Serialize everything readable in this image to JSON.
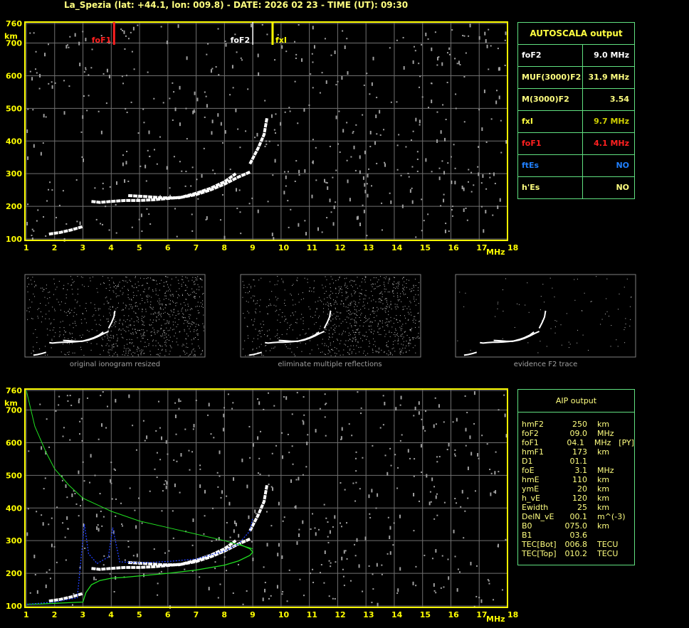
{
  "title": "La_Spezia (lat: +44.1, lon: 009.8) - DATE: 2026 02 23 - TIME (UT): 09:30",
  "colors": {
    "axis": "#ffff00",
    "grid": "#707070",
    "trace": "#ffffff",
    "noise": "#a0a0a0",
    "foF1": "#ff2020",
    "fxI": "#ffff00",
    "foF2": "#ffffff",
    "profile": "#20e020",
    "fit": "#2040ff",
    "table_border": "#60e080"
  },
  "chart_data": [
    {
      "type": "scatter",
      "name_note": "",
      "xlabel": "MHz",
      "ylabel": "km",
      "xlim": [
        1,
        18
      ],
      "ylim": [
        100,
        760
      ],
      "xticks": [
        "1",
        "2",
        "3",
        "4",
        "5",
        "6",
        "7",
        "8",
        "9",
        "10",
        "11",
        "12",
        "13",
        "14",
        "15",
        "16",
        "17",
        "18"
      ],
      "yticks": [
        "100",
        "200",
        "300",
        "400",
        "500",
        "600",
        "700",
        "760"
      ],
      "grid": true,
      "markers": [
        {
          "label": "foF1",
          "freq": 4.1
        },
        {
          "label": "foF2",
          "freq": 9.0
        },
        {
          "label": "fxI",
          "freq": 9.7
        }
      ],
      "traces": {
        "E": [
          [
            1.8,
            115
          ],
          [
            2.2,
            120
          ],
          [
            2.6,
            128
          ],
          [
            3.0,
            138
          ]
        ],
        "F1": [
          [
            3.3,
            215
          ],
          [
            3.6,
            212
          ],
          [
            4.0,
            215
          ],
          [
            4.5,
            218
          ],
          [
            5.0,
            218
          ],
          [
            5.5,
            220
          ],
          [
            6.0,
            224
          ],
          [
            6.5,
            228
          ],
          [
            7.0,
            236
          ],
          [
            7.5,
            250
          ],
          [
            8.0,
            268
          ],
          [
            8.5,
            290
          ],
          [
            8.9,
            305
          ]
        ],
        "F1b": [
          [
            4.6,
            233
          ],
          [
            5.2,
            230
          ],
          [
            5.8,
            226
          ],
          [
            6.4,
            226
          ],
          [
            7.0,
            240
          ],
          [
            7.5,
            255
          ],
          [
            8.0,
            275
          ],
          [
            8.4,
            300
          ]
        ],
        "F2": [
          [
            8.9,
            330
          ],
          [
            9.2,
            380
          ],
          [
            9.4,
            420
          ],
          [
            9.5,
            470
          ]
        ]
      }
    },
    {
      "type": "line",
      "xlabel": "MHz",
      "ylabel": "km",
      "xlim": [
        1,
        18
      ],
      "ylim": [
        100,
        760
      ],
      "xticks": [
        "1",
        "2",
        "3",
        "4",
        "5",
        "6",
        "7",
        "8",
        "9",
        "10",
        "11",
        "12",
        "13",
        "14",
        "15",
        "16",
        "17",
        "18"
      ],
      "yticks": [
        "100",
        "200",
        "300",
        "400",
        "500",
        "600",
        "700",
        "760"
      ],
      "grid": true,
      "series": [
        {
          "color": "#20e020",
          "x": [
            1.0,
            1.5,
            2.0,
            2.5,
            3.0,
            3.1,
            3.3,
            3.6,
            4.0,
            4.5,
            5.0,
            6.0,
            7.0,
            8.0,
            8.5,
            8.9,
            9.0,
            8.9,
            8.5
          ],
          "y": [
            105,
            106,
            108,
            110,
            112,
            140,
            165,
            178,
            185,
            188,
            192,
            200,
            210,
            225,
            238,
            255,
            265,
            275,
            290
          ]
        },
        {
          "color": "#20e020",
          "x": [
            1.0,
            1.3,
            1.7,
            2.0,
            2.5,
            3.0,
            3.5,
            4.0,
            5.0,
            6.0,
            7.0,
            8.0,
            9.0
          ],
          "y": [
            760,
            650,
            570,
            520,
            470,
            430,
            410,
            390,
            360,
            340,
            320,
            300,
            275
          ]
        },
        {
          "color": "#2040ff",
          "x": [
            1.0,
            2.0,
            2.8,
            3.05,
            3.2,
            3.5,
            3.9,
            4.05,
            4.3,
            5.0,
            6.0,
            7.0,
            8.0,
            8.5,
            8.9,
            9.0
          ],
          "y": [
            105,
            112,
            125,
            350,
            260,
            230,
            250,
            340,
            235,
            232,
            236,
            244,
            268,
            290,
            330,
            370
          ]
        }
      ]
    }
  ],
  "autoscala": {
    "title": "AUTOSCALA output",
    "rows": [
      {
        "k": "foF2",
        "v": "9.0 MHz",
        "kc": "#ffffff",
        "vc": "#ffffff"
      },
      {
        "k": "MUF(3000)F2",
        "v": "31.9 MHz",
        "kc": "#ffff80",
        "vc": "#ffff80"
      },
      {
        "k": "M(3000)F2",
        "v": "3.54",
        "kc": "#ffff80",
        "vc": "#ffff80"
      },
      {
        "k": "fxI",
        "v": "9.7 MHz",
        "kc": "#ffff40",
        "vc": "#d0d000"
      },
      {
        "k": "foF1",
        "v": "4.1 MHz",
        "kc": "#ff2020",
        "vc": "#ff2020"
      },
      {
        "k": "ftEs",
        "v": "NO",
        "kc": "#2080ff",
        "vc": "#2080ff"
      },
      {
        "k": "h'Es",
        "v": "NO",
        "kc": "#ffff80",
        "vc": "#ffff80"
      }
    ]
  },
  "aip": {
    "title": "AIP output",
    "rows": [
      {
        "k": "hmF2",
        "v": "250",
        "u": "km",
        "x": ""
      },
      {
        "k": "foF2",
        "v": "09.0",
        "u": "MHz",
        "x": ""
      },
      {
        "k": "foF1",
        "v": "04.1",
        "u": "MHz",
        "x": "[PY]"
      },
      {
        "k": "hmF1",
        "v": "173",
        "u": "km",
        "x": ""
      },
      {
        "k": "D1",
        "v": "01.1",
        "u": "",
        "x": ""
      },
      {
        "k": "foE",
        "v": "3.1",
        "u": "MHz",
        "x": ""
      },
      {
        "k": "hmE",
        "v": "110",
        "u": "km",
        "x": ""
      },
      {
        "k": "ymE",
        "v": "20",
        "u": "km",
        "x": ""
      },
      {
        "k": "h_vE",
        "v": "120",
        "u": "km",
        "x": ""
      },
      {
        "k": "Ewidth",
        "v": "25",
        "u": "km",
        "x": ""
      },
      {
        "k": "DelN_vE",
        "v": "00.1",
        "u": "m^(-3)",
        "x": ""
      },
      {
        "k": "B0",
        "v": "075.0",
        "u": "km",
        "x": ""
      },
      {
        "k": "B1",
        "v": "03.6",
        "u": "",
        "x": ""
      },
      {
        "k": "TEC[Bot]",
        "v": "006.8",
        "u": "TECU",
        "x": ""
      },
      {
        "k": "TEC[Top]",
        "v": "010.2",
        "u": "TECU",
        "x": ""
      }
    ]
  },
  "thumbnails": [
    "original ionogram resized",
    "eliminate multiple reflections",
    "evidence F2 trace"
  ]
}
